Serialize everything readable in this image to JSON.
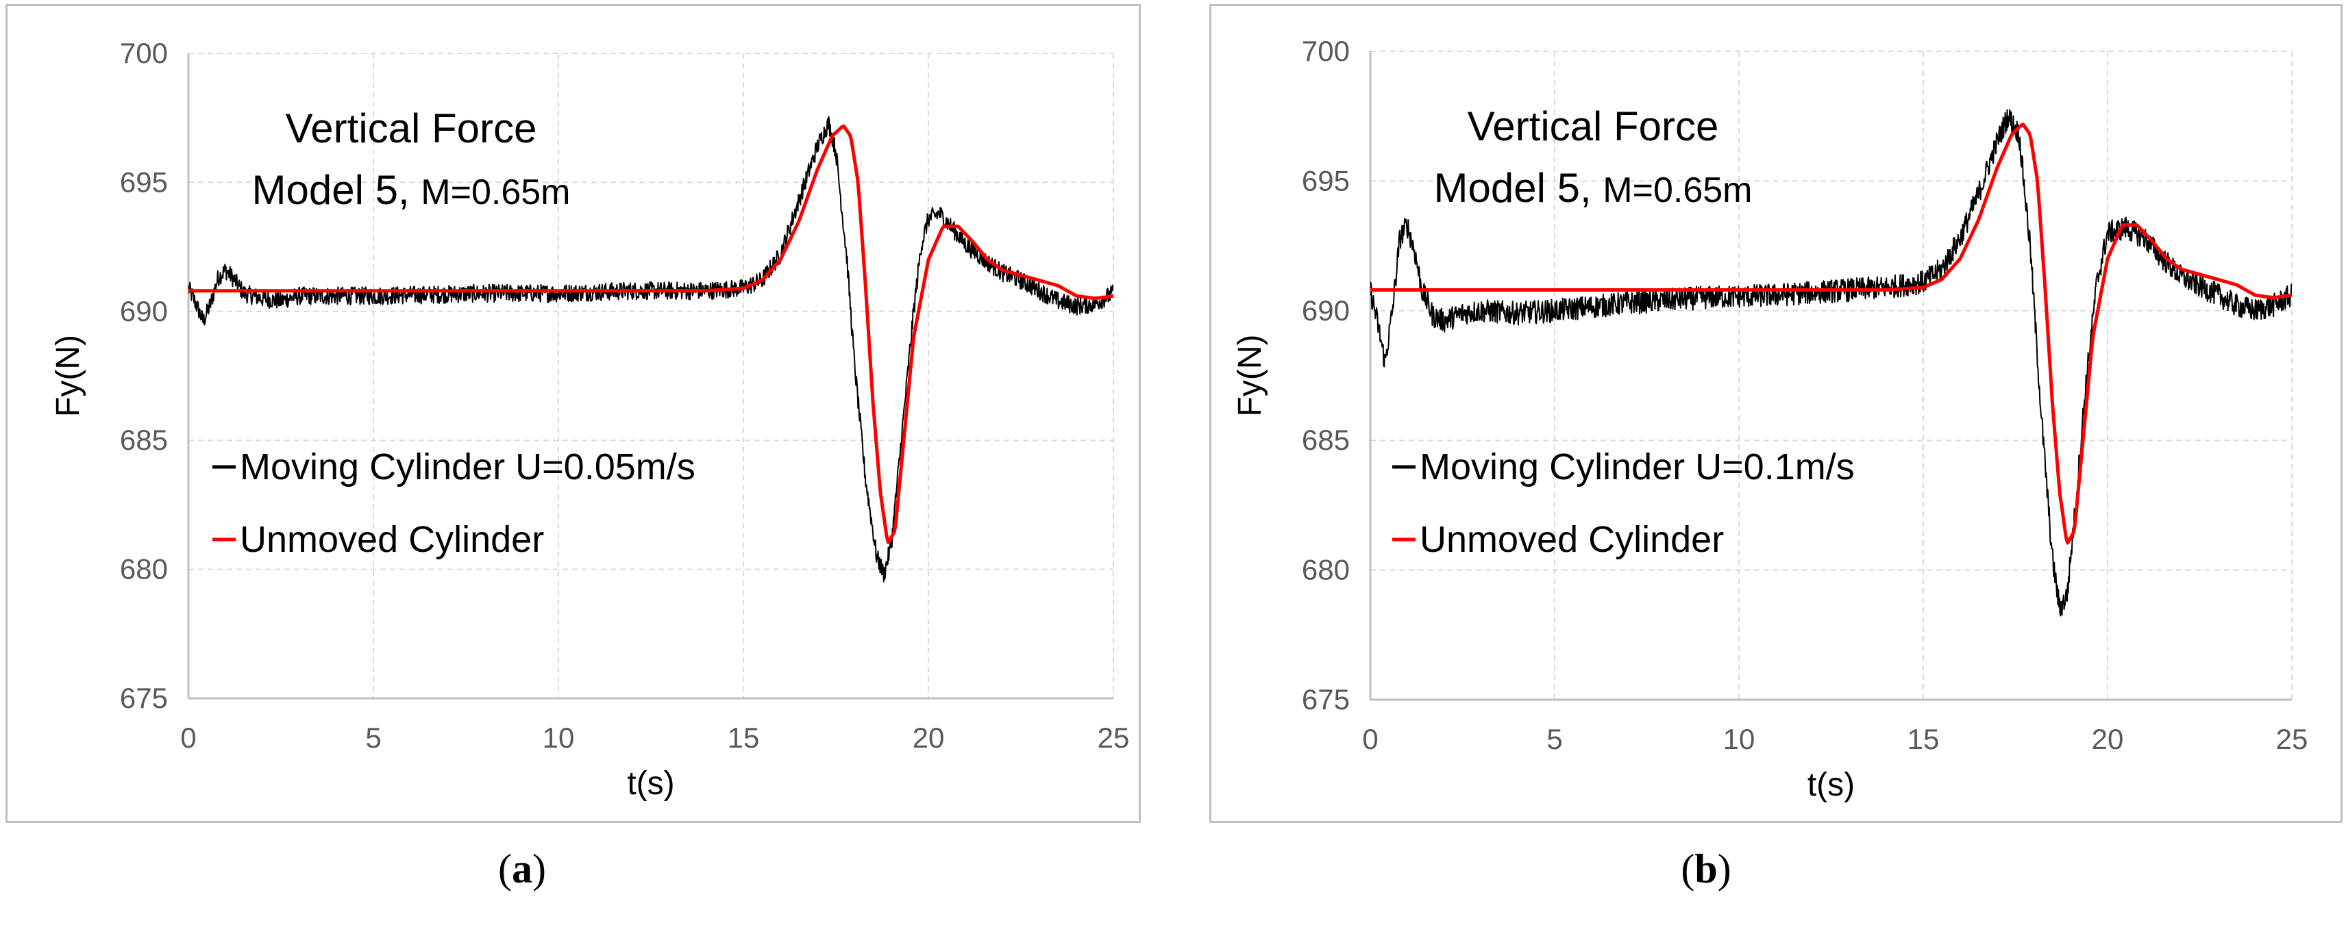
{
  "chart_data": [
    {
      "type": "line",
      "panel_label": "a",
      "title": "Vertical Force",
      "subtitle_prefix": "Model 5, ",
      "subtitle_suffix": "M=0.65m",
      "xlabel": "t(s)",
      "ylabel": "Fy(N)",
      "xlim": [
        0,
        25
      ],
      "ylim": [
        675,
        700
      ],
      "xticks": [
        0,
        5,
        10,
        15,
        20,
        25
      ],
      "yticks": [
        675,
        680,
        685,
        690,
        695,
        700
      ],
      "grid": true,
      "legend_position": "middle-left",
      "series": [
        {
          "name": "Moving Cylinder U=0.05m/s",
          "color": "#000000",
          "noise": 0.35,
          "x": [
            0,
            0.2,
            0.4,
            0.6,
            0.8,
            1.0,
            1.2,
            1.5,
            2.0,
            2.5,
            2.7,
            3,
            5,
            8,
            10,
            12,
            14,
            15,
            15.5,
            16,
            16.5,
            17,
            17.3,
            17.5,
            17.8,
            18.0,
            18.3,
            18.6,
            18.8,
            19.0,
            19.3,
            19.6,
            19.8,
            20.0,
            20.3,
            20.6,
            21,
            21.5,
            22,
            22.5,
            23,
            23.5,
            24,
            24.5,
            25
          ],
          "values": [
            690.9,
            690.3,
            689.6,
            690.3,
            691.3,
            691.6,
            691.3,
            690.7,
            690.5,
            690.4,
            690.5,
            690.6,
            690.6,
            690.7,
            690.7,
            690.8,
            690.8,
            690.9,
            691.2,
            692.2,
            694.3,
            696.4,
            697.3,
            696.2,
            692.0,
            688.0,
            683.5,
            680.5,
            679.8,
            681.0,
            685.5,
            690.0,
            692.5,
            693.6,
            693.8,
            693.3,
            692.6,
            692.0,
            691.5,
            691.2,
            690.8,
            690.4,
            690.2,
            690.3,
            690.7
          ]
        },
        {
          "name": "Unmoved Cylinder",
          "color": "#ff0000",
          "noise": 0,
          "x": [
            0,
            5,
            10,
            14,
            15,
            15.5,
            16,
            16.5,
            17,
            17.4,
            17.7,
            17.9,
            18.1,
            18.3,
            18.5,
            18.7,
            18.9,
            19.1,
            19.3,
            19.6,
            20.0,
            20.4,
            20.8,
            21.2,
            21.6,
            22,
            22.5,
            23,
            23.5,
            24,
            24.5,
            25
          ],
          "values": [
            690.8,
            690.8,
            690.8,
            690.8,
            690.9,
            691.2,
            692.0,
            693.5,
            695.5,
            696.8,
            697.2,
            696.8,
            695.0,
            691.0,
            686.5,
            683.0,
            681.0,
            681.5,
            684.5,
            689.0,
            692.0,
            693.3,
            693.3,
            692.7,
            692.0,
            691.6,
            691.4,
            691.2,
            691.0,
            690.6,
            690.5,
            690.6
          ]
        }
      ]
    },
    {
      "type": "line",
      "panel_label": "b",
      "title": "Vertical Force",
      "subtitle_prefix": "Model 5, ",
      "subtitle_suffix": "M=0.65m",
      "xlabel": "t(s)",
      "ylabel": "Fy(N)",
      "xlim": [
        0,
        25
      ],
      "ylim": [
        675,
        700
      ],
      "xticks": [
        0,
        5,
        10,
        15,
        20,
        25
      ],
      "yticks": [
        675,
        680,
        685,
        690,
        695,
        700
      ],
      "grid": true,
      "legend_position": "middle-left",
      "series": [
        {
          "name": "Moving Cylinder U=0.1m/s",
          "color": "#000000",
          "noise": 0.45,
          "x": [
            0,
            0.2,
            0.4,
            0.6,
            0.8,
            1.0,
            1.2,
            1.4,
            1.7,
            2.0,
            2.5,
            3,
            4,
            5,
            7,
            9,
            11,
            13,
            14,
            15,
            15.5,
            16,
            16.5,
            17,
            17.3,
            17.6,
            17.9,
            18.2,
            18.5,
            18.7,
            18.9,
            19.1,
            19.4,
            19.7,
            20.0,
            20.5,
            21,
            21.5,
            22,
            23,
            23.5,
            24,
            24.5,
            25
          ],
          "values": [
            690.8,
            689.5,
            688.0,
            690.0,
            692.8,
            693.3,
            692.3,
            690.8,
            689.8,
            689.6,
            689.9,
            690.0,
            689.9,
            690.0,
            690.3,
            690.5,
            690.6,
            690.8,
            690.9,
            691.1,
            691.6,
            692.8,
            694.5,
            696.5,
            697.5,
            696.8,
            692.5,
            686.0,
            680.5,
            678.5,
            679.0,
            682.0,
            687.0,
            691.0,
            693.0,
            693.2,
            692.8,
            692.0,
            691.3,
            690.6,
            690.2,
            690.0,
            690.2,
            690.6
          ]
        },
        {
          "name": "Unmoved Cylinder",
          "color": "#ff0000",
          "noise": 0,
          "x": [
            0,
            5,
            10,
            14,
            15,
            15.5,
            16,
            16.5,
            17,
            17.4,
            17.7,
            17.9,
            18.1,
            18.3,
            18.5,
            18.7,
            18.9,
            19.1,
            19.3,
            19.6,
            20.0,
            20.4,
            20.8,
            21.2,
            21.6,
            22,
            22.5,
            23,
            23.5,
            24,
            24.5,
            25
          ],
          "values": [
            690.8,
            690.8,
            690.8,
            690.8,
            690.9,
            691.2,
            692.0,
            693.5,
            695.5,
            696.8,
            697.2,
            696.8,
            695.0,
            691.0,
            686.5,
            683.0,
            681.0,
            681.5,
            684.5,
            689.0,
            692.0,
            693.3,
            693.3,
            692.7,
            692.0,
            691.6,
            691.4,
            691.2,
            691.0,
            690.6,
            690.5,
            690.6
          ]
        }
      ]
    }
  ]
}
